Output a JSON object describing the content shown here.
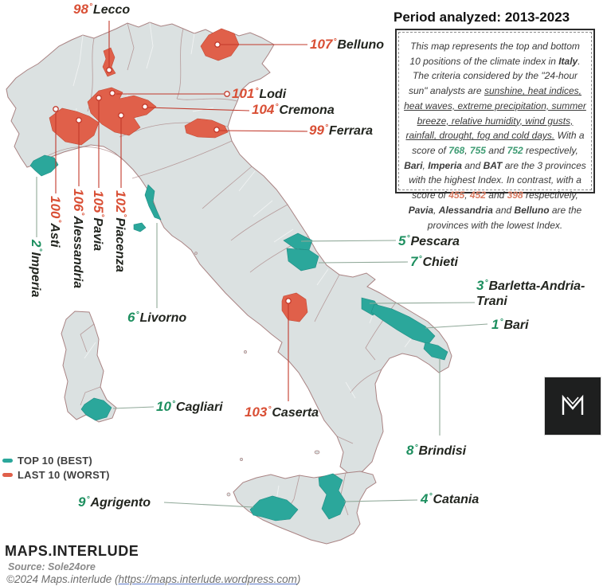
{
  "meta": {
    "degree_symbol": "°"
  },
  "colors": {
    "best": "#2ba79b",
    "worst": "#e0604a",
    "best_number": "#1d8f5f",
    "worst_number": "#d94f35",
    "label_name": "#22251f",
    "land": "#dbe1e1",
    "region_border": "#a98383",
    "leader_best": "#8fa898",
    "leader_worst": "#c2392b",
    "score_good": "#3d9b72",
    "score_bad": "#d97b62"
  },
  "period_box": {
    "title": "Period analyzed: 2013-2023",
    "segments": [
      {
        "t": "This map represents the top and bottom 10 positions of the climate index in "
      },
      {
        "t": "Italy",
        "b": 1
      },
      {
        "t": ". The criteria considered by the \"24-hour sun\" analysts are "
      },
      {
        "t": "sunshine, heat indices, heat waves, extreme precipitation, summer breeze, relative humidity, wind gusts, rainfall, drought, fog and cold days.",
        "u": 1
      },
      {
        "t": " With a score of "
      },
      {
        "t": "768",
        "c": "good"
      },
      {
        "t": ", "
      },
      {
        "t": "755",
        "c": "good"
      },
      {
        "t": " and "
      },
      {
        "t": "752",
        "c": "good"
      },
      {
        "t": " respectively, "
      },
      {
        "t": "Bari",
        "b": 1
      },
      {
        "t": ", "
      },
      {
        "t": "Imperia",
        "b": 1
      },
      {
        "t": " and "
      },
      {
        "t": "BAT",
        "b": 1
      },
      {
        "t": " are the 3 provinces with the highest Index. In contrast, with a score of "
      },
      {
        "t": "455",
        "c": "bad"
      },
      {
        "t": ", "
      },
      {
        "t": "452",
        "c": "bad"
      },
      {
        "t": " and "
      },
      {
        "t": "398",
        "c": "bad"
      },
      {
        "t": " respectively, "
      },
      {
        "t": "Pavia",
        "b": 1
      },
      {
        "t": ", "
      },
      {
        "t": "Alessandria",
        "b": 1
      },
      {
        "t": " and "
      },
      {
        "t": "Belluno",
        "b": 1
      },
      {
        "t": " are the provinces with the lowest Index."
      }
    ]
  },
  "labels": [
    {
      "rank": "98",
      "name": "Lecco",
      "group": "worst"
    },
    {
      "rank": "107",
      "name": "Belluno",
      "group": "worst"
    },
    {
      "rank": "101",
      "name": "Lodi",
      "group": "worst"
    },
    {
      "rank": "104",
      "name": "Cremona",
      "group": "worst"
    },
    {
      "rank": "99",
      "name": "Ferrara",
      "group": "worst"
    },
    {
      "rank": "100",
      "name": "Asti",
      "group": "worst"
    },
    {
      "rank": "106",
      "name": "Alessandria",
      "group": "worst"
    },
    {
      "rank": "105",
      "name": "Pavia",
      "group": "worst"
    },
    {
      "rank": "102",
      "name": "Piacenza",
      "group": "worst"
    },
    {
      "rank": "2",
      "name": "Imperia",
      "group": "best"
    },
    {
      "rank": "6",
      "name": "Livorno",
      "group": "best"
    },
    {
      "rank": "5",
      "name": "Pescara",
      "group": "best"
    },
    {
      "rank": "7",
      "name": "Chieti",
      "group": "best"
    },
    {
      "rank": "3",
      "name": "Barletta-Andria-Trani",
      "group": "best"
    },
    {
      "rank": "1",
      "name": "Bari",
      "group": "best"
    },
    {
      "rank": "10",
      "name": "Cagliari",
      "group": "best"
    },
    {
      "rank": "103",
      "name": "Caserta",
      "group": "worst"
    },
    {
      "rank": "8",
      "name": "Brindisi",
      "group": "best"
    },
    {
      "rank": "4",
      "name": "Catania",
      "group": "best"
    },
    {
      "rank": "9",
      "name": "Agrigento",
      "group": "best"
    }
  ],
  "legend": {
    "items": [
      {
        "label": "TOP 10 (BEST)",
        "group": "best"
      },
      {
        "label": "LAST 10 (WORST)",
        "group": "worst"
      }
    ]
  },
  "logo": {
    "letter": "M"
  },
  "footer": {
    "brand": "MAPS.INTERLUDE",
    "source": "Source: Sole24ore",
    "copyright_prefix": "©2024 Maps.interlude (",
    "url": "https://maps.interlude.wordpress.com",
    "copyright_suffix": ")"
  }
}
